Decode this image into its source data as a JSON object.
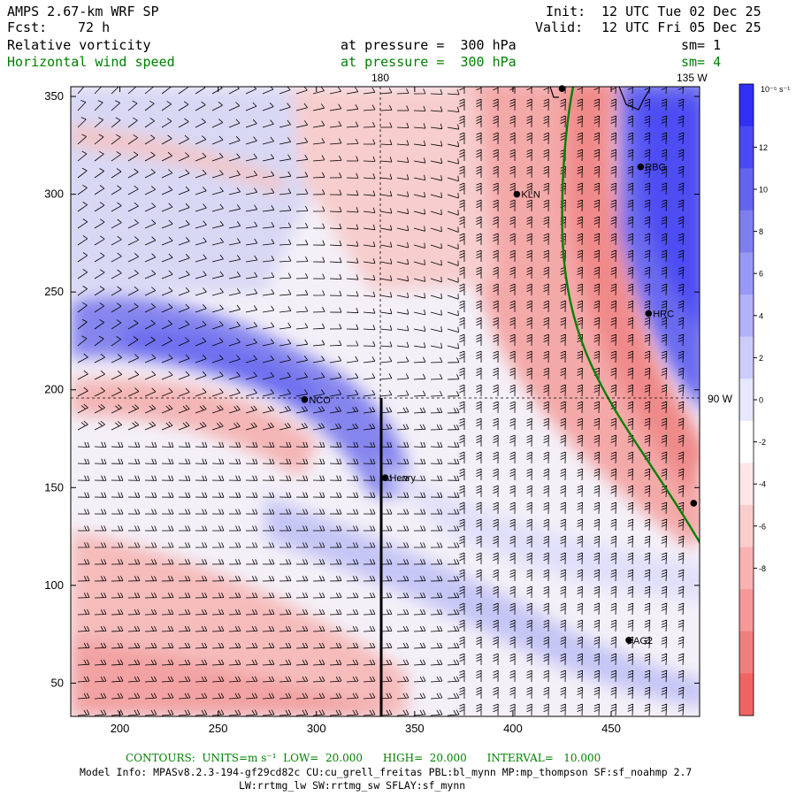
{
  "header": {
    "model": "AMPS 2.67-km WRF SP",
    "forecast_label": "Fcst:",
    "forecast_value": "72 h",
    "init_label": "Init:",
    "init_value": "12 UTC Tue 02 Dec 25",
    "valid_label": "Valid:",
    "valid_value": "12 UTC Fri 05 Dec 25"
  },
  "fields": [
    {
      "name": "Relative vorticity",
      "pressure_text": "at pressure =  300 hPa",
      "smooth": "sm= 1",
      "color": "#000000"
    },
    {
      "name": "Horizontal wind speed",
      "pressure_text": "at pressure =  300 hPa",
      "smooth": "sm= 4",
      "color": "#008000"
    }
  ],
  "map": {
    "lon_labels": {
      "top_180": "180",
      "top_135w": "135 W",
      "right_90w": "90 W"
    },
    "y_ticks": [
      50,
      100,
      150,
      200,
      250,
      300,
      350
    ],
    "x_ticks": [
      200,
      250,
      300,
      350,
      400,
      450
    ],
    "x_range": [
      175,
      495
    ],
    "y_range": [
      33,
      355
    ],
    "stations": [
      {
        "id": "LA",
        "label": "",
        "x": 425,
        "y": 354
      },
      {
        "id": "RBG",
        "label": "RBG",
        "x": 465,
        "y": 314
      },
      {
        "id": "KLN",
        "label": "KLN",
        "x": 402,
        "y": 300
      },
      {
        "id": "HRC",
        "label": "HRC",
        "x": 469,
        "y": 239
      },
      {
        "id": "NCO",
        "label": "NCO",
        "x": 294,
        "y": 195
      },
      {
        "id": "Henry",
        "label": "Henry",
        "x": 335,
        "y": 155
      },
      {
        "id": "E",
        "label": "",
        "x": 492,
        "y": 142
      },
      {
        "id": "AG2",
        "label": "AG2",
        "x": 459,
        "y": 72
      }
    ],
    "contour_color": "#008000",
    "section_line_color": "#000000"
  },
  "colorbar": {
    "unit_label": "10⁻⁵ s⁻¹",
    "labels": [
      "12",
      "10",
      "8",
      "6",
      "4",
      "2",
      "0",
      "-2",
      "-4",
      "-6",
      "-8"
    ],
    "colors": [
      "#2f2ff5",
      "#4a4af5",
      "#6464f1",
      "#7e7ef1",
      "#9898f5",
      "#b2b2f8",
      "#ccccfb",
      "#e6e6fd",
      "#ffffff",
      "#fde6e6",
      "#fbcccc",
      "#f8b2b2",
      "#f59898",
      "#f17e7e",
      "#f16464"
    ]
  },
  "footer": {
    "contours": "CONTOURS:  UNITS=m s⁻¹  LOW=  20.000      HIGH=  20.000      INTERVAL=   10.000",
    "model_info_1": "Model Info: MPASv8.2.3-194-gf29cd82c CU:cu_grell_freitas PBL:bl_mynn MP:mp_thompson SF:sf_noahmp 2.7",
    "model_info_2": "LW:rrtmg_lw SW:rrtmg_sw SFLAY:sf_mynn"
  }
}
